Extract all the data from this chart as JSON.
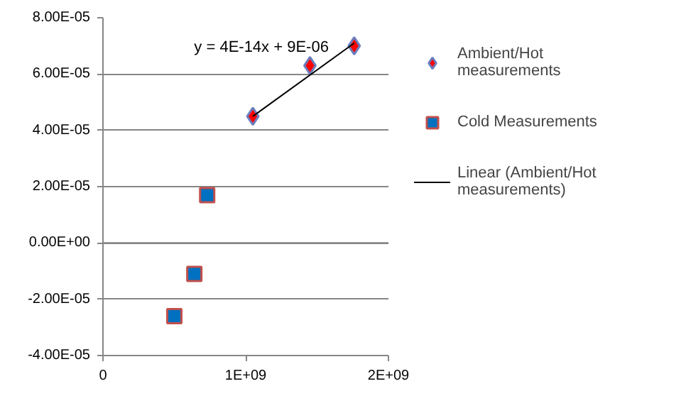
{
  "chart_data": {
    "type": "scatter",
    "xlim": [
      0,
      2000000000
    ],
    "ylim": [
      -4e-05,
      8e-05
    ],
    "xticks": [
      0,
      {
        "value": 1000000000,
        "label": "1E+09"
      },
      {
        "value": 2000000000,
        "label": "2E+09"
      }
    ],
    "yticks": [
      {
        "value": -4e-05,
        "label": "-4.00E-05"
      },
      {
        "value": -2e-05,
        "label": "-2.00E-05"
      },
      {
        "value": 0,
        "label": "0.00E+00"
      },
      {
        "value": 2e-05,
        "label": "2.00E-05"
      },
      {
        "value": 4e-05,
        "label": "4.00E-05"
      },
      {
        "value": 6e-05,
        "label": "6.00E-05"
      },
      {
        "value": 8e-05,
        "label": "8.00E-05"
      }
    ],
    "grid": "y",
    "legend": "right",
    "annotations": [
      "y = 4E-14x + 9E-06"
    ],
    "series": [
      {
        "name": "Ambient/Hot measurements",
        "color": "#ff0000",
        "marker": "diamond",
        "x": [
          1050000000,
          1450000000,
          1760000000
        ],
        "values": [
          4.5e-05,
          6.3e-05,
          7e-05
        ]
      },
      {
        "name": "Cold Measurements",
        "color": "#0070c0",
        "marker": "square",
        "x": [
          730000000,
          640000000,
          500000000
        ],
        "values": [
          1.7e-05,
          -1.1e-05,
          -2.6e-05
        ]
      },
      {
        "name": "Linear (Ambient/Hot measurements)",
        "type": "line",
        "color": "#000000",
        "line_style": "solid",
        "x": [
          1050000000,
          1760000000
        ],
        "values": [
          4.5e-05,
          7.1e-05
        ]
      }
    ]
  }
}
